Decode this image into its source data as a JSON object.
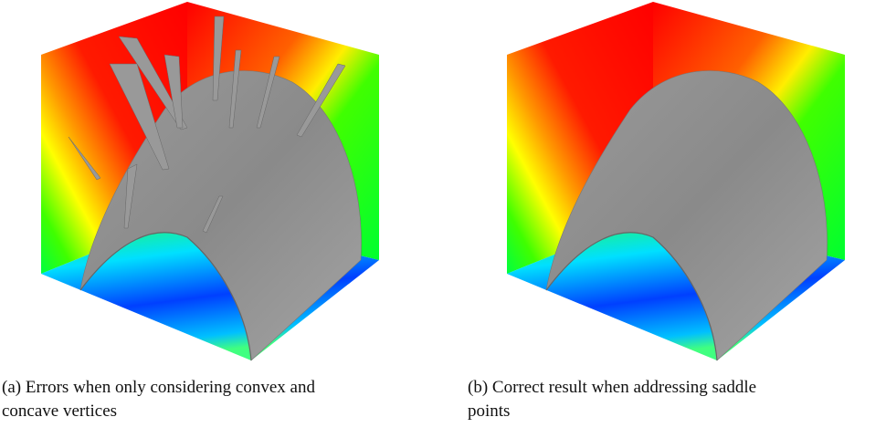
{
  "figures": [
    {
      "caption": "(a) Errors when only considering convex and concave vertices"
    },
    {
      "caption": "(b) Correct result when addressing saddle points"
    }
  ]
}
